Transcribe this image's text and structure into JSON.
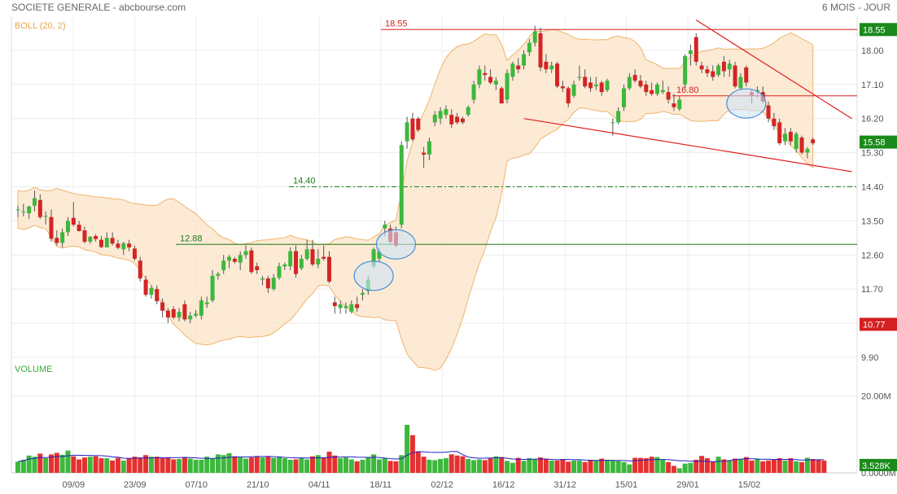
{
  "header": {
    "title": "SOCIETE GENERALE - abcbourse.com",
    "period": "6 MOIS - JOUR"
  },
  "chart_data": [
    {
      "type": "candlestick",
      "indicator_label": "BOLL (20, 2)",
      "y_ticks": [
        9.9,
        10.8,
        11.7,
        12.6,
        13.5,
        14.4,
        15.3,
        16.2,
        17.1,
        18.0
      ],
      "y_tick_labels": [
        "9.90",
        "10.80",
        "11.70",
        "12.60",
        "13.50",
        "14.40",
        "15.30",
        "16.20",
        "17.10",
        "18.00"
      ],
      "ylim": [
        9.9,
        18.9
      ],
      "x_labels": [
        "09/09",
        "23/09",
        "07/10",
        "21/10",
        "04/11",
        "18/11",
        "02/12",
        "16/12",
        "31/12",
        "15/01",
        "29/01",
        "15/02"
      ],
      "price_badges": [
        {
          "value": 18.55,
          "text": "18.55",
          "color": "#1a8a1a"
        },
        {
          "value": 15.58,
          "text": "15.58",
          "color": "#1a8a1a"
        },
        {
          "value": 10.77,
          "text": "10.77",
          "color": "#d42020"
        }
      ],
      "levels": [
        {
          "value": 18.55,
          "label": "18.55",
          "color": "#d42020",
          "style": "solid"
        },
        {
          "value": 16.8,
          "label": "16.80",
          "color": "#d42020",
          "style": "solid"
        },
        {
          "value": 14.4,
          "label": "14.40",
          "color": "#1a7a1a",
          "style": "dashdot"
        },
        {
          "value": 12.88,
          "label": "12.88",
          "color": "#1a7a1a",
          "style": "solid"
        }
      ],
      "trendlines": [
        {
          "from": [
            122,
            18.8
          ],
          "to": [
            150,
            16.2
          ]
        },
        {
          "from": [
            91,
            16.2
          ],
          "to": [
            150,
            14.8
          ]
        }
      ],
      "ellipses": [
        {
          "index": 64,
          "value": 12.05
        },
        {
          "index": 68,
          "value": 12.88
        },
        {
          "index": 131,
          "value": 16.6
        }
      ],
      "candles": [
        {
          "o": 13.78,
          "h": 13.9,
          "l": 13.6,
          "c": 13.8
        },
        {
          "o": 13.75,
          "h": 13.95,
          "l": 13.62,
          "c": 13.75
        },
        {
          "o": 13.7,
          "h": 13.9,
          "l": 13.55,
          "c": 13.88
        },
        {
          "o": 13.9,
          "h": 14.3,
          "l": 13.75,
          "c": 14.1
        },
        {
          "o": 14.05,
          "h": 14.2,
          "l": 13.55,
          "c": 13.6
        },
        {
          "o": 13.62,
          "h": 13.75,
          "l": 13.4,
          "c": 13.63
        },
        {
          "o": 13.6,
          "h": 13.8,
          "l": 12.95,
          "c": 13.03
        },
        {
          "o": 13.05,
          "h": 13.25,
          "l": 12.85,
          "c": 12.92
        },
        {
          "o": 12.92,
          "h": 13.3,
          "l": 12.8,
          "c": 13.2
        },
        {
          "o": 13.2,
          "h": 13.6,
          "l": 13.1,
          "c": 13.5
        },
        {
          "o": 13.58,
          "h": 14.0,
          "l": 13.35,
          "c": 13.4
        },
        {
          "o": 13.4,
          "h": 13.5,
          "l": 13.22,
          "c": 13.23
        },
        {
          "o": 13.25,
          "h": 13.35,
          "l": 12.9,
          "c": 12.95
        },
        {
          "o": 12.95,
          "h": 13.1,
          "l": 12.9,
          "c": 13.08
        },
        {
          "o": 13.1,
          "h": 13.15,
          "l": 12.95,
          "c": 13.02
        },
        {
          "o": 13.0,
          "h": 13.1,
          "l": 12.78,
          "c": 12.81
        },
        {
          "o": 12.8,
          "h": 13.2,
          "l": 12.8,
          "c": 13.05
        },
        {
          "o": 13.05,
          "h": 13.2,
          "l": 12.85,
          "c": 12.9
        },
        {
          "o": 12.9,
          "h": 13.0,
          "l": 12.75,
          "c": 12.79
        },
        {
          "o": 12.75,
          "h": 12.95,
          "l": 12.6,
          "c": 12.91
        },
        {
          "o": 12.9,
          "h": 13.0,
          "l": 12.7,
          "c": 12.8
        },
        {
          "o": 12.77,
          "h": 12.85,
          "l": 12.45,
          "c": 12.5
        },
        {
          "o": 12.45,
          "h": 12.55,
          "l": 11.9,
          "c": 11.98
        },
        {
          "o": 11.95,
          "h": 12.05,
          "l": 11.5,
          "c": 11.55
        },
        {
          "o": 11.55,
          "h": 11.8,
          "l": 11.45,
          "c": 11.73
        },
        {
          "o": 11.7,
          "h": 11.8,
          "l": 11.3,
          "c": 11.38
        },
        {
          "o": 11.35,
          "h": 11.45,
          "l": 10.95,
          "c": 11.13
        },
        {
          "o": 11.13,
          "h": 11.2,
          "l": 10.8,
          "c": 10.95
        },
        {
          "o": 11.17,
          "h": 11.25,
          "l": 10.9,
          "c": 10.95
        },
        {
          "o": 10.95,
          "h": 11.2,
          "l": 10.85,
          "c": 11.1
        },
        {
          "o": 11.3,
          "h": 11.4,
          "l": 10.85,
          "c": 10.9
        },
        {
          "o": 10.9,
          "h": 11.1,
          "l": 10.8,
          "c": 11.0
        },
        {
          "o": 11.0,
          "h": 11.15,
          "l": 10.95,
          "c": 11.05
        },
        {
          "o": 11.0,
          "h": 11.5,
          "l": 10.9,
          "c": 11.4
        },
        {
          "o": 11.3,
          "h": 11.5,
          "l": 11.2,
          "c": 11.35
        },
        {
          "o": 11.4,
          "h": 12.2,
          "l": 11.35,
          "c": 12.05
        },
        {
          "o": 12.05,
          "h": 12.15,
          "l": 11.95,
          "c": 12.1
        },
        {
          "o": 12.2,
          "h": 12.6,
          "l": 12.1,
          "c": 12.45
        },
        {
          "o": 12.45,
          "h": 12.6,
          "l": 12.25,
          "c": 12.55
        },
        {
          "o": 12.5,
          "h": 12.55,
          "l": 12.38,
          "c": 12.42
        },
        {
          "o": 12.4,
          "h": 12.7,
          "l": 12.2,
          "c": 12.6
        },
        {
          "o": 12.6,
          "h": 12.85,
          "l": 12.5,
          "c": 12.7
        },
        {
          "o": 12.72,
          "h": 12.8,
          "l": 12.1,
          "c": 12.15
        },
        {
          "o": 12.3,
          "h": 12.4,
          "l": 12.1,
          "c": 12.2
        },
        {
          "o": 11.95,
          "h": 12.05,
          "l": 11.8,
          "c": 11.98
        },
        {
          "o": 11.98,
          "h": 12.05,
          "l": 11.6,
          "c": 11.72
        },
        {
          "o": 11.7,
          "h": 12.1,
          "l": 11.65,
          "c": 12.0
        },
        {
          "o": 12.0,
          "h": 12.4,
          "l": 11.95,
          "c": 12.3
        },
        {
          "o": 12.3,
          "h": 12.4,
          "l": 12.2,
          "c": 12.35
        },
        {
          "o": 12.3,
          "h": 12.8,
          "l": 12.2,
          "c": 12.7
        },
        {
          "o": 12.7,
          "h": 12.85,
          "l": 12.0,
          "c": 12.1
        },
        {
          "o": 12.25,
          "h": 12.6,
          "l": 12.2,
          "c": 12.5
        },
        {
          "o": 12.5,
          "h": 13.0,
          "l": 12.45,
          "c": 12.75
        },
        {
          "o": 12.75,
          "h": 13.0,
          "l": 12.3,
          "c": 12.35
        },
        {
          "o": 12.35,
          "h": 12.75,
          "l": 12.25,
          "c": 12.5
        },
        {
          "o": 12.55,
          "h": 12.85,
          "l": 12.45,
          "c": 12.5
        },
        {
          "o": 12.55,
          "h": 12.7,
          "l": 11.85,
          "c": 11.9
        },
        {
          "o": 11.35,
          "h": 11.5,
          "l": 11.05,
          "c": 11.25
        },
        {
          "o": 11.2,
          "h": 11.4,
          "l": 11.05,
          "c": 11.3
        },
        {
          "o": 11.2,
          "h": 11.35,
          "l": 11.05,
          "c": 11.25
        },
        {
          "o": 11.1,
          "h": 11.4,
          "l": 11.05,
          "c": 11.3
        },
        {
          "o": 11.3,
          "h": 11.5,
          "l": 11.1,
          "c": 11.2
        },
        {
          "o": 11.55,
          "h": 11.7,
          "l": 11.4,
          "c": 11.6
        },
        {
          "o": 11.65,
          "h": 12.05,
          "l": 11.55,
          "c": 11.95
        },
        {
          "o": 12.3,
          "h": 12.8,
          "l": 12.25,
          "c": 12.75
        },
        {
          "o": 12.5,
          "h": 12.8,
          "l": 12.4,
          "c": 12.7
        },
        {
          "o": 13.3,
          "h": 13.5,
          "l": 13.1,
          "c": 13.4
        },
        {
          "o": 13.3,
          "h": 13.4,
          "l": 12.9,
          "c": 12.95
        },
        {
          "o": 13.2,
          "h": 13.35,
          "l": 12.8,
          "c": 12.85
        },
        {
          "o": 13.4,
          "h": 15.6,
          "l": 13.3,
          "c": 15.5
        },
        {
          "o": 15.6,
          "h": 16.25,
          "l": 15.4,
          "c": 16.1
        },
        {
          "o": 16.2,
          "h": 16.35,
          "l": 15.6,
          "c": 15.65
        },
        {
          "o": 16.2,
          "h": 16.25,
          "l": 15.85,
          "c": 15.9
        },
        {
          "o": 15.3,
          "h": 15.45,
          "l": 14.9,
          "c": 15.25
        },
        {
          "o": 15.25,
          "h": 15.7,
          "l": 15.1,
          "c": 15.6
        },
        {
          "o": 16.1,
          "h": 16.4,
          "l": 16.0,
          "c": 16.3
        },
        {
          "o": 16.2,
          "h": 16.5,
          "l": 16.05,
          "c": 16.4
        },
        {
          "o": 16.3,
          "h": 16.55,
          "l": 16.2,
          "c": 16.45
        },
        {
          "o": 16.3,
          "h": 16.45,
          "l": 15.95,
          "c": 16.05
        },
        {
          "o": 16.25,
          "h": 16.35,
          "l": 16.05,
          "c": 16.1
        },
        {
          "o": 16.2,
          "h": 16.25,
          "l": 16.05,
          "c": 16.1
        },
        {
          "o": 16.3,
          "h": 16.55,
          "l": 16.25,
          "c": 16.5
        },
        {
          "o": 16.7,
          "h": 17.2,
          "l": 16.6,
          "c": 17.1
        },
        {
          "o": 17.1,
          "h": 17.6,
          "l": 17.0,
          "c": 17.5
        },
        {
          "o": 17.4,
          "h": 17.6,
          "l": 17.2,
          "c": 17.35
        },
        {
          "o": 17.3,
          "h": 17.5,
          "l": 17.1,
          "c": 17.15
        },
        {
          "o": 17.1,
          "h": 17.3,
          "l": 16.95,
          "c": 17.2
        },
        {
          "o": 17.0,
          "h": 17.05,
          "l": 16.6,
          "c": 16.6
        },
        {
          "o": 16.7,
          "h": 17.5,
          "l": 16.6,
          "c": 17.4
        },
        {
          "o": 17.3,
          "h": 17.7,
          "l": 17.2,
          "c": 17.65
        },
        {
          "o": 17.6,
          "h": 17.8,
          "l": 17.4,
          "c": 17.5
        },
        {
          "o": 17.6,
          "h": 18.0,
          "l": 17.5,
          "c": 17.9
        },
        {
          "o": 17.95,
          "h": 18.3,
          "l": 17.85,
          "c": 18.2
        },
        {
          "o": 18.2,
          "h": 18.65,
          "l": 18.1,
          "c": 18.5
        },
        {
          "o": 18.45,
          "h": 18.6,
          "l": 17.45,
          "c": 17.55
        },
        {
          "o": 17.7,
          "h": 17.9,
          "l": 17.4,
          "c": 17.5
        },
        {
          "o": 17.5,
          "h": 17.7,
          "l": 17.4,
          "c": 17.6
        },
        {
          "o": 17.65,
          "h": 17.7,
          "l": 17.0,
          "c": 17.05
        },
        {
          "o": 17.05,
          "h": 17.2,
          "l": 16.9,
          "c": 17.0
        },
        {
          "o": 17.0,
          "h": 17.05,
          "l": 16.5,
          "c": 16.6
        },
        {
          "o": 16.8,
          "h": 17.2,
          "l": 16.75,
          "c": 17.1
        },
        {
          "o": 17.3,
          "h": 17.6,
          "l": 17.2,
          "c": 17.3
        },
        {
          "o": 17.3,
          "h": 17.5,
          "l": 17.0,
          "c": 17.05
        },
        {
          "o": 17.15,
          "h": 17.3,
          "l": 16.9,
          "c": 17.0
        },
        {
          "o": 17.05,
          "h": 17.3,
          "l": 16.95,
          "c": 17.1
        },
        {
          "o": 17.15,
          "h": 17.2,
          "l": 16.8,
          "c": 16.9
        },
        {
          "o": 16.95,
          "h": 17.25,
          "l": 16.9,
          "c": 17.2
        },
        {
          "o": 16.1,
          "h": 16.2,
          "l": 15.75,
          "c": 16.1
        },
        {
          "o": 16.1,
          "h": 16.5,
          "l": 16.05,
          "c": 16.4
        },
        {
          "o": 16.5,
          "h": 17.1,
          "l": 16.4,
          "c": 17.0
        },
        {
          "o": 17.0,
          "h": 17.4,
          "l": 16.95,
          "c": 17.3
        },
        {
          "o": 17.35,
          "h": 17.5,
          "l": 17.15,
          "c": 17.2
        },
        {
          "o": 17.2,
          "h": 17.35,
          "l": 17.0,
          "c": 17.05
        },
        {
          "o": 17.1,
          "h": 17.2,
          "l": 16.8,
          "c": 16.9
        },
        {
          "o": 16.95,
          "h": 17.15,
          "l": 16.8,
          "c": 16.85
        },
        {
          "o": 16.85,
          "h": 17.15,
          "l": 16.8,
          "c": 17.1
        },
        {
          "o": 16.9,
          "h": 17.2,
          "l": 16.85,
          "c": 16.95
        },
        {
          "o": 16.9,
          "h": 17.05,
          "l": 16.6,
          "c": 16.7
        },
        {
          "o": 16.6,
          "h": 16.85,
          "l": 16.4,
          "c": 16.5
        },
        {
          "o": 16.45,
          "h": 16.8,
          "l": 16.4,
          "c": 16.7
        },
        {
          "o": 17.1,
          "h": 17.9,
          "l": 17.0,
          "c": 17.85
        },
        {
          "o": 17.9,
          "h": 18.15,
          "l": 17.6,
          "c": 18.0
        },
        {
          "o": 18.35,
          "h": 18.45,
          "l": 17.6,
          "c": 17.7
        },
        {
          "o": 17.6,
          "h": 17.7,
          "l": 17.4,
          "c": 17.5
        },
        {
          "o": 17.5,
          "h": 17.6,
          "l": 17.3,
          "c": 17.4
        },
        {
          "o": 17.45,
          "h": 17.6,
          "l": 17.2,
          "c": 17.3
        },
        {
          "o": 17.35,
          "h": 17.65,
          "l": 17.3,
          "c": 17.6
        },
        {
          "o": 17.7,
          "h": 17.85,
          "l": 17.3,
          "c": 17.45
        },
        {
          "o": 17.5,
          "h": 17.75,
          "l": 17.3,
          "c": 17.65
        },
        {
          "o": 17.6,
          "h": 17.7,
          "l": 17.0,
          "c": 17.05
        },
        {
          "o": 17.0,
          "h": 17.4,
          "l": 16.95,
          "c": 17.3
        },
        {
          "o": 17.55,
          "h": 17.6,
          "l": 17.05,
          "c": 17.15
        },
        {
          "o": 16.9,
          "h": 16.95,
          "l": 16.6,
          "c": 16.8
        },
        {
          "o": 16.9,
          "h": 17.05,
          "l": 16.75,
          "c": 16.95
        },
        {
          "o": 16.9,
          "h": 17.05,
          "l": 16.6,
          "c": 16.65
        },
        {
          "o": 16.55,
          "h": 16.65,
          "l": 16.1,
          "c": 16.2
        },
        {
          "o": 16.2,
          "h": 16.35,
          "l": 15.9,
          "c": 16.0
        },
        {
          "o": 16.1,
          "h": 16.2,
          "l": 15.5,
          "c": 15.55
        },
        {
          "o": 15.6,
          "h": 15.95,
          "l": 15.5,
          "c": 15.8
        },
        {
          "o": 15.85,
          "h": 15.95,
          "l": 15.5,
          "c": 15.6
        },
        {
          "o": 15.4,
          "h": 15.85,
          "l": 15.3,
          "c": 15.8
        },
        {
          "o": 15.7,
          "h": 15.75,
          "l": 15.25,
          "c": 15.3
        },
        {
          "o": 15.3,
          "h": 15.45,
          "l": 15.15,
          "c": 15.4
        },
        {
          "o": 15.65,
          "h": 15.7,
          "l": 15.5,
          "c": 15.55
        }
      ]
    },
    {
      "type": "bar",
      "title": "VOLUME",
      "y_tick_labels": [
        "20.00M",
        "0.0000M"
      ],
      "y_ticks": [
        20.0,
        0.0
      ],
      "ylim": [
        0,
        29
      ],
      "last_badge": "3.528K",
      "volumes": [
        2.9,
        3.4,
        4.5,
        4.2,
        5.0,
        3.8,
        4.8,
        5.2,
        4.7,
        5.8,
        4.3,
        3.5,
        4.0,
        4.2,
        4.3,
        3.8,
        3.8,
        3.2,
        3.9,
        3.2,
        3.8,
        4.2,
        4.0,
        4.6,
        4.2,
        4.2,
        3.8,
        3.9,
        3.5,
        3.6,
        4.1,
        3.7,
        3.4,
        3.4,
        4.2,
        3.7,
        4.8,
        4.6,
        5.1,
        4.3,
        4.0,
        3.7,
        4.0,
        4.2,
        4.0,
        4.2,
        3.9,
        4.2,
        3.8,
        3.4,
        3.5,
        3.8,
        3.5,
        4.3,
        4.6,
        4.0,
        5.5,
        4.5,
        3.8,
        4.0,
        3.5,
        3.0,
        3.4,
        4.0,
        4.8,
        3.5,
        3.8,
        3.1,
        3.0,
        4.6,
        12.5,
        9.8,
        5.6,
        4.2,
        3.4,
        3.3,
        3.6,
        3.8,
        4.8,
        4.5,
        4.3,
        3.6,
        3.3,
        3.5,
        3.3,
        3.8,
        4.3,
        4.1,
        3.1,
        2.6,
        3.9,
        3.1,
        3.8,
        3.6,
        4.0,
        3.6,
        3.2,
        3.2,
        3.6,
        2.9,
        3.2,
        3.2,
        2.8,
        3.2,
        3.3,
        3.7,
        3.4,
        3.2,
        3.1,
        2.8,
        2.2,
        3.9,
        3.9,
        3.8,
        4.2,
        4.1,
        3.5,
        2.8,
        1.8,
        1.2,
        2.4,
        2.6,
        3.4,
        4.4,
        3.8,
        3.0,
        4.2,
        3.5,
        3.3,
        3.7,
        3.6,
        4.1,
        3.2,
        3.6,
        3.0,
        3.2,
        3.4,
        3.8,
        3.2,
        3.8,
        3.0,
        2.8,
        3.9,
        3.6,
        3.4,
        3.2
      ]
    }
  ]
}
